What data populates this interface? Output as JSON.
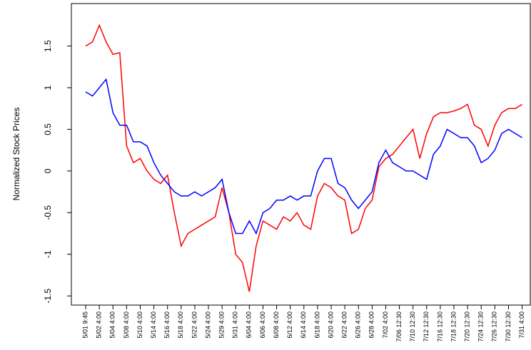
{
  "chart_data": {
    "type": "line",
    "y_label": "Normalized Stock Prices",
    "x": [
      0,
      0.5,
      1,
      1.5,
      2,
      2.5,
      3,
      3.5,
      4,
      4.5,
      5,
      5.5,
      6,
      6.5,
      7,
      7.5,
      8,
      8.5,
      9,
      9.5,
      10,
      10.5,
      11,
      11.5,
      12,
      12.5,
      13,
      13.5,
      14,
      14.5,
      15,
      15.5,
      16,
      16.5,
      17,
      17.5,
      18,
      18.5,
      19,
      19.5,
      20,
      20.5,
      21,
      21.5,
      22,
      22.5,
      23,
      23.5,
      24,
      24.5,
      25,
      25.5,
      26,
      26.5,
      27,
      27.5,
      28,
      28.5,
      29,
      29.5,
      30,
      30.5,
      31,
      31.5,
      32
    ],
    "series": [
      {
        "color": "#ff0000",
        "values": [
          1.5,
          1.55,
          1.75,
          1.55,
          1.4,
          1.42,
          0.3,
          0.1,
          0.15,
          0.0,
          -0.1,
          -0.15,
          -0.05,
          -0.5,
          -0.9,
          -0.75,
          -0.7,
          -0.65,
          -0.6,
          -0.55,
          -0.2,
          -0.5,
          -1.0,
          -1.1,
          -1.45,
          -0.9,
          -0.6,
          -0.65,
          -0.7,
          -0.55,
          -0.6,
          -0.5,
          -0.65,
          -0.7,
          -0.3,
          -0.15,
          -0.2,
          -0.3,
          -0.35,
          -0.75,
          -0.7,
          -0.45,
          -0.35,
          0.05,
          0.15,
          0.2,
          0.3,
          0.4,
          0.5,
          0.15,
          0.45,
          0.65,
          0.7,
          0.7,
          0.72,
          0.75,
          0.8,
          0.55,
          0.5,
          0.3,
          0.55,
          0.7,
          0.75,
          0.75,
          0.8
        ]
      },
      {
        "color": "#0000ff",
        "values": [
          0.95,
          0.9,
          1.0,
          1.1,
          0.7,
          0.55,
          0.55,
          0.35,
          0.35,
          0.3,
          0.1,
          -0.05,
          -0.15,
          -0.25,
          -0.3,
          -0.3,
          -0.25,
          -0.3,
          -0.25,
          -0.2,
          -0.1,
          -0.5,
          -0.75,
          -0.75,
          -0.6,
          -0.75,
          -0.5,
          -0.45,
          -0.35,
          -0.35,
          -0.3,
          -0.35,
          -0.3,
          -0.3,
          0.0,
          0.15,
          0.15,
          -0.15,
          -0.2,
          -0.35,
          -0.45,
          -0.35,
          -0.25,
          0.1,
          0.25,
          0.1,
          0.05,
          0.0,
          0.0,
          -0.05,
          -0.1,
          0.2,
          0.3,
          0.5,
          0.45,
          0.4,
          0.4,
          0.3,
          0.1,
          0.15,
          0.25,
          0.45,
          0.5,
          0.45,
          0.4
        ]
      }
    ],
    "xlim": [
      -1.05,
      32.6
    ],
    "xticks": [
      {
        "value": 0,
        "label": "5/01 9:45"
      },
      {
        "value": 1,
        "label": "5/02 4:00"
      },
      {
        "value": 2,
        "label": "5/04 4:00"
      },
      {
        "value": 3,
        "label": "5/08 4:00"
      },
      {
        "value": 4,
        "label": "5/10 4:00"
      },
      {
        "value": 5,
        "label": "5/14 4:00"
      },
      {
        "value": 6,
        "label": "5/16 4:00"
      },
      {
        "value": 7,
        "label": "5/18 4:00"
      },
      {
        "value": 8,
        "label": "5/22 4:00"
      },
      {
        "value": 9,
        "label": "5/24 4:00"
      },
      {
        "value": 10,
        "label": "5/29 4:00"
      },
      {
        "value": 11,
        "label": "5/31 4:00"
      },
      {
        "value": 12,
        "label": "6/04 4:00"
      },
      {
        "value": 13,
        "label": "6/06 4:00"
      },
      {
        "value": 14,
        "label": "6/08 4:00"
      },
      {
        "value": 15,
        "label": "6/12 4:00"
      },
      {
        "value": 16,
        "label": "6/14 4:00"
      },
      {
        "value": 17,
        "label": "6/18 4:00"
      },
      {
        "value": 18,
        "label": "6/20 4:00"
      },
      {
        "value": 19,
        "label": "6/22 4:00"
      },
      {
        "value": 20,
        "label": "6/26 4:00"
      },
      {
        "value": 21,
        "label": "6/28 4:00"
      },
      {
        "value": 22,
        "label": "7/02 4:00"
      },
      {
        "value": 23,
        "label": "7/06 12:30"
      },
      {
        "value": 24,
        "label": "7/10 12:30"
      },
      {
        "value": 25,
        "label": "7/12 12:30"
      },
      {
        "value": 26,
        "label": "7/16 12:30"
      },
      {
        "value": 27,
        "label": "7/18 12:30"
      },
      {
        "value": 28,
        "label": "7/20 12:30"
      },
      {
        "value": 29,
        "label": "7/24 12:30"
      },
      {
        "value": 30,
        "label": "7/26 12:30"
      },
      {
        "value": 31,
        "label": "7/30 12:30"
      },
      {
        "value": 32,
        "label": "7/31 4:00"
      }
    ],
    "ylim": [
      -1.61,
      2.01
    ],
    "yticks": [
      -1.5,
      -1,
      -0.5,
      0,
      0.5,
      1,
      1.5
    ],
    "grid": false
  }
}
